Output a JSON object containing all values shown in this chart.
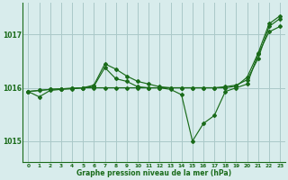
{
  "background_color": "#d8ecec",
  "grid_color": "#aac8c8",
  "line_color": "#1a6b1a",
  "text_color": "#1a6b1a",
  "xlabel": "Graphe pression niveau de la mer (hPa)",
  "xlim": [
    -0.5,
    23.5
  ],
  "ylim": [
    1014.6,
    1017.6
  ],
  "yticks": [
    1015,
    1016,
    1017
  ],
  "xticks": [
    0,
    1,
    2,
    3,
    4,
    5,
    6,
    7,
    8,
    9,
    10,
    11,
    12,
    13,
    14,
    15,
    16,
    17,
    18,
    19,
    20,
    21,
    22,
    23
  ],
  "series": [
    [
      1015.93,
      1015.83,
      1015.95,
      1015.97,
      1015.98,
      1016.0,
      1016.03,
      1016.38,
      1016.17,
      1016.12,
      1016.02,
      1016.0,
      1016.0,
      1015.97,
      1015.87,
      1015.0,
      1015.33,
      1015.48,
      1015.93,
      1016.0,
      1016.07,
      1016.63,
      1017.05,
      1017.15
    ],
    [
      1015.93,
      1015.95,
      1015.97,
      1015.98,
      1015.99,
      1016.0,
      1016.05,
      1016.45,
      1016.35,
      1016.22,
      1016.12,
      1016.07,
      1016.02,
      1016.0,
      1016.0,
      1016.0,
      1016.0,
      1016.0,
      1016.02,
      1016.05,
      1016.15,
      1016.55,
      1017.15,
      1017.3
    ],
    [
      1015.93,
      1015.95,
      1015.97,
      1015.98,
      1015.99,
      1016.0,
      1016.0,
      1016.0,
      1016.0,
      1016.0,
      1016.0,
      1016.0,
      1016.0,
      1016.0,
      1016.0,
      1016.0,
      1016.0,
      1016.0,
      1016.0,
      1016.03,
      1016.2,
      1016.65,
      1017.2,
      1017.35
    ]
  ]
}
